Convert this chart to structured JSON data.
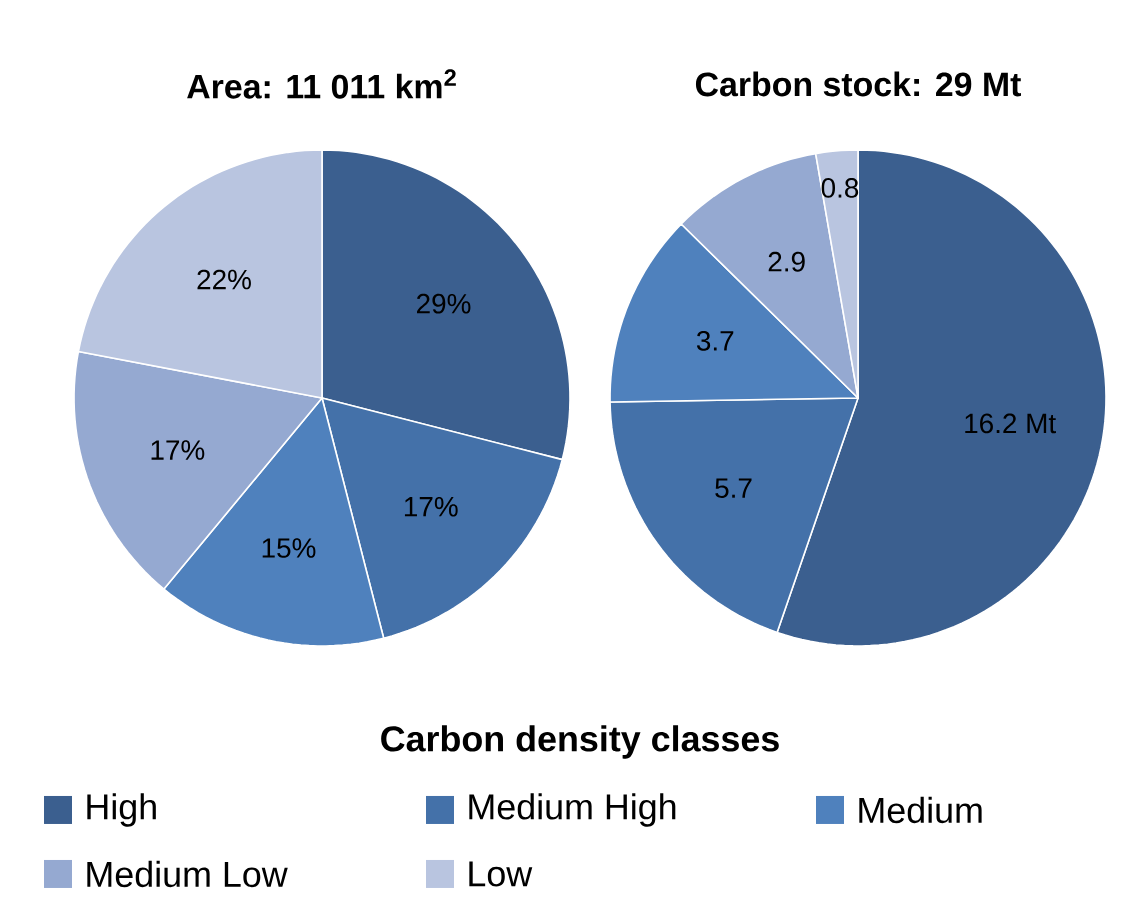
{
  "chart_data": [
    {
      "type": "pie",
      "title": "Area: 11 011 km$^{2}$",
      "categories": [
        "High",
        "Medium High",
        "Medium",
        "Medium Low",
        "Low"
      ],
      "values": [
        29,
        17,
        15,
        17,
        22
      ],
      "value_labels": [
        "29%",
        "17%",
        "15%",
        "17%",
        "22%"
      ],
      "colors": [
        "#3b5f8f",
        "#4471a9",
        "#4f81bd",
        "#95a9d1",
        "#b9c5e0"
      ],
      "legend": "bottom",
      "legend_title": "Carbon density classes"
    },
    {
      "type": "pie",
      "title": "Carbon stock: 29 Mt",
      "values": [
        16.2,
        5.7,
        3.7,
        2.9,
        0.8
      ],
      "value_labels": [
        "16.2 Mt",
        "5.7",
        "3.7",
        "2.9",
        "0.8"
      ],
      "colors": [
        "#3b5f8f",
        "#4471a9",
        "#4f81bd",
        "#95a9d1",
        "#b9c5e0"
      ]
    }
  ]
}
